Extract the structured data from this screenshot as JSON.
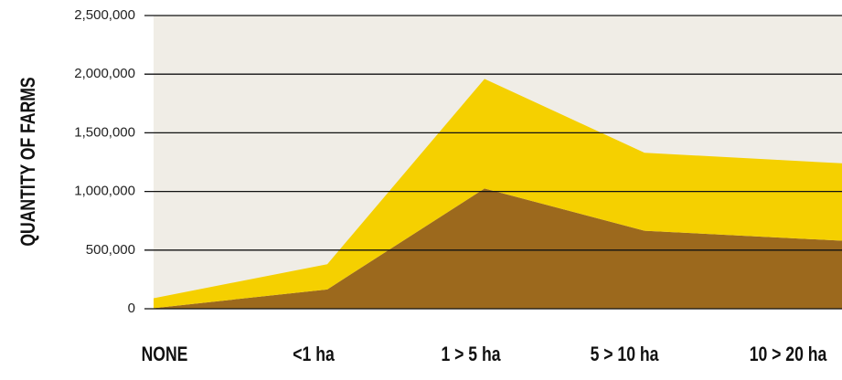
{
  "chart_data": {
    "type": "stacked-area",
    "ylabel": "QUANTITY OF FARMS",
    "categories": [
      "NONE",
      "<1 ha",
      "1 > 5 ha",
      "5 > 10 ha",
      "10 > 20 ha"
    ],
    "series": [
      {
        "color": "#9c691d",
        "values": [
          5000,
          165000,
          1025000,
          665000,
          580000
        ]
      },
      {
        "color": "#f5d000",
        "values": [
          85000,
          215000,
          935000,
          665000,
          660000
        ]
      }
    ],
    "ylim": [
      0,
      2500000
    ],
    "yticks": [
      0,
      {
        "value": 500000,
        "label": "500,000"
      },
      {
        "value": 1000000,
        "label": "1,000,000"
      },
      {
        "value": 1500000,
        "label": "1,500,000"
      },
      {
        "value": 2000000,
        "label": "2,000,000"
      },
      {
        "value": 2500000,
        "label": "2,500,000"
      }
    ],
    "grid": true
  }
}
